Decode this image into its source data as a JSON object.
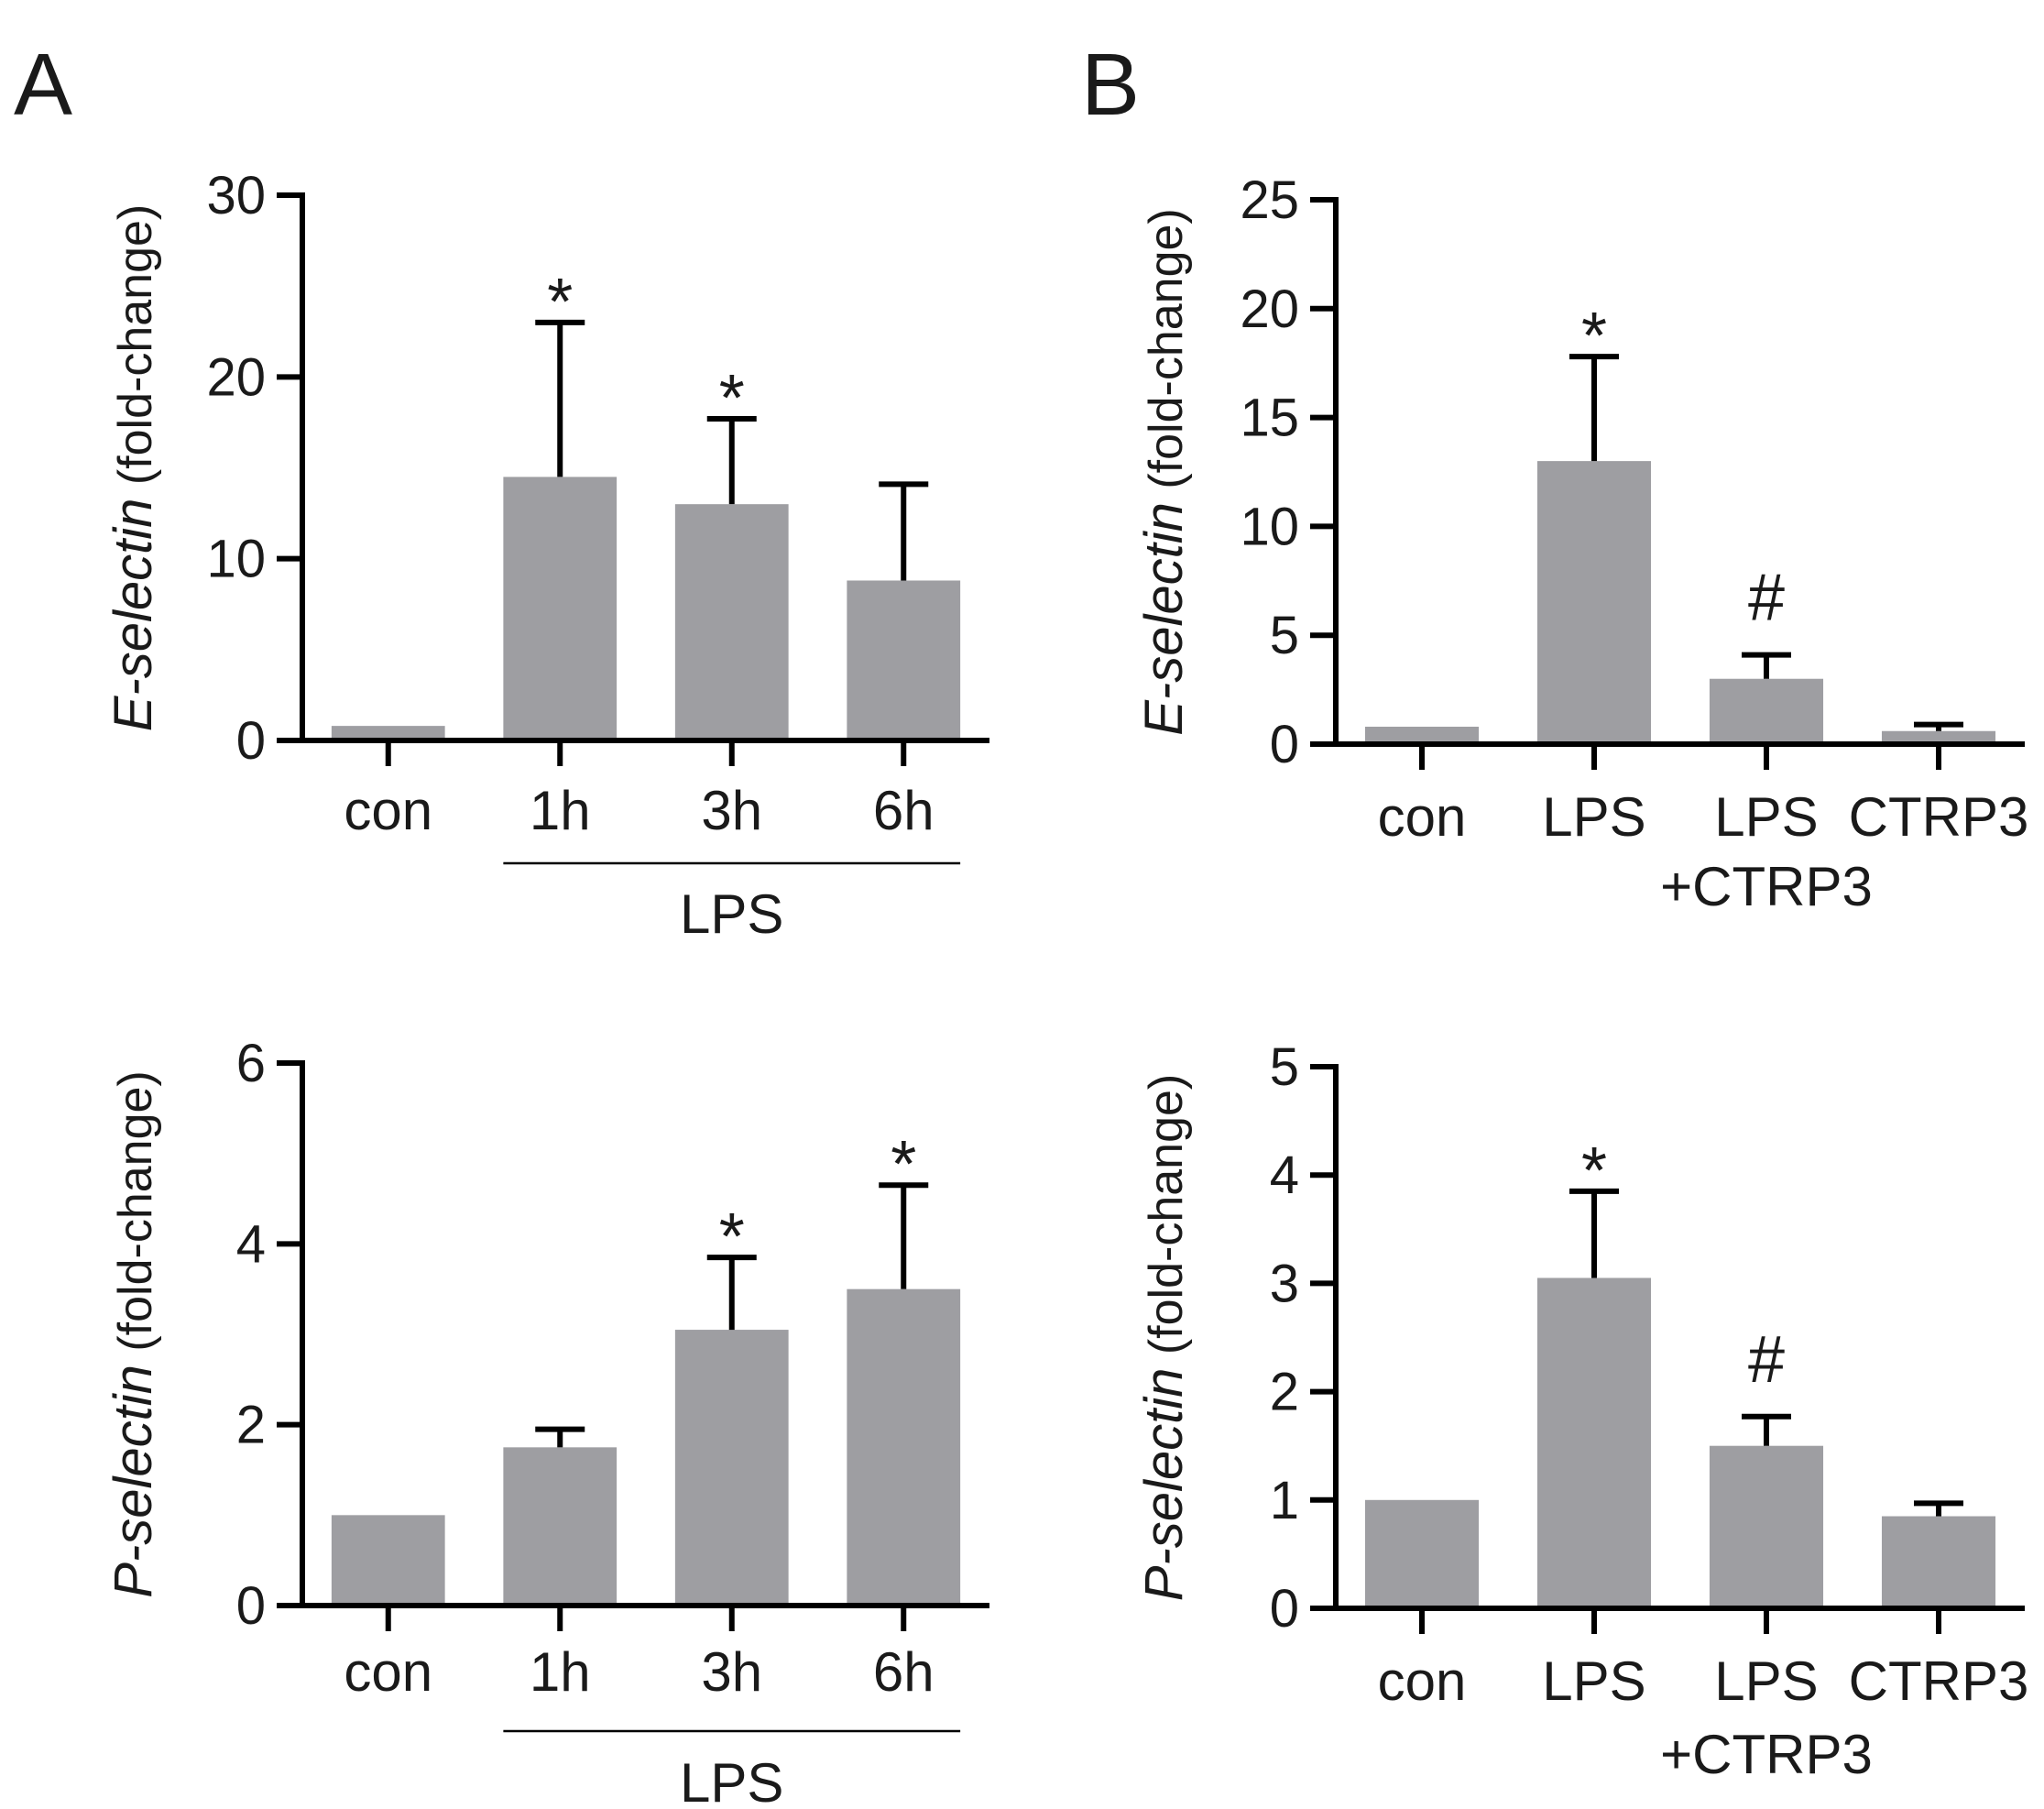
{
  "panel_letters": [
    "A",
    "B"
  ],
  "colors": {
    "bar": "#9e9ea2",
    "axis": "#000000",
    "text": "#1a1a1a"
  },
  "chart_data": [
    {
      "id": "A_top",
      "type": "bar",
      "panel": "A",
      "ylabel_italic": "E-selectin",
      "ylabel_rest": " (fold-change)",
      "ylim": [
        0,
        30
      ],
      "yticks": [
        0,
        10,
        20,
        30
      ],
      "categories": [
        "con",
        "1h",
        "3h",
        "6h"
      ],
      "values": [
        0.8,
        14.5,
        13.0,
        8.8
      ],
      "errors": [
        0,
        8.5,
        4.7,
        5.3
      ],
      "marks": [
        "",
        "*",
        "*",
        ""
      ],
      "group": {
        "label": "LPS",
        "from": 1,
        "to": 3
      }
    },
    {
      "id": "B_top",
      "type": "bar",
      "panel": "B",
      "ylabel_italic": "E-selectin",
      "ylabel_rest": " (fold-change)",
      "ylim": [
        0,
        25
      ],
      "yticks": [
        0,
        5,
        10,
        15,
        20,
        25
      ],
      "categories": [
        "con",
        "LPS",
        "LPS",
        "CTRP3"
      ],
      "categories_line2": [
        "",
        "",
        "+CTRP3",
        ""
      ],
      "values": [
        0.8,
        13.0,
        3.0,
        0.6
      ],
      "errors": [
        0,
        4.8,
        1.1,
        0.3
      ],
      "marks": [
        "",
        "*",
        "#",
        ""
      ]
    },
    {
      "id": "A_bottom",
      "type": "bar",
      "panel": "A",
      "ylabel_italic": "P-selectin",
      "ylabel_rest": " (fold-change)",
      "ylim": [
        0,
        6
      ],
      "yticks": [
        0,
        2,
        4,
        6
      ],
      "categories": [
        "con",
        "1h",
        "3h",
        "6h"
      ],
      "values": [
        1.0,
        1.75,
        3.05,
        3.5
      ],
      "errors": [
        0,
        0.2,
        0.8,
        1.15
      ],
      "marks": [
        "",
        "",
        "*",
        "*"
      ],
      "group": {
        "label": "LPS",
        "from": 1,
        "to": 3
      }
    },
    {
      "id": "B_bottom",
      "type": "bar",
      "panel": "B",
      "ylabel_italic": "P-selectin",
      "ylabel_rest": " (fold-change)",
      "ylim": [
        0,
        5
      ],
      "yticks": [
        0,
        1,
        2,
        3,
        4,
        5
      ],
      "categories": [
        "con",
        "LPS",
        "LPS",
        "CTRP3"
      ],
      "categories_line2": [
        "",
        "",
        "+CTRP3",
        ""
      ],
      "values": [
        1.0,
        3.05,
        1.5,
        0.85
      ],
      "errors": [
        0,
        0.8,
        0.27,
        0.12
      ],
      "marks": [
        "",
        "*",
        "#",
        ""
      ]
    }
  ]
}
